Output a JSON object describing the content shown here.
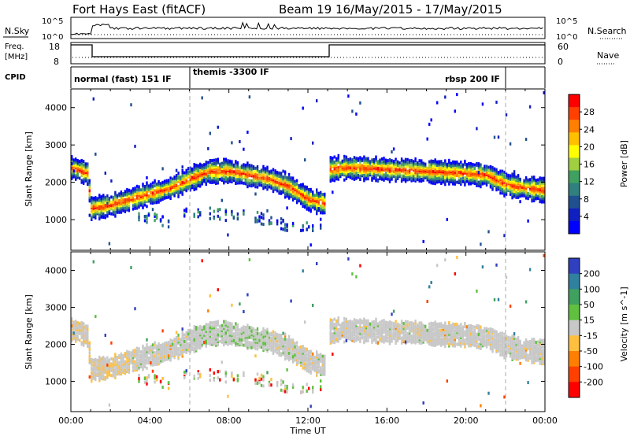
{
  "header": {
    "station": "Fort Hays East (fitACF)",
    "beam_info": "Beam 19  16/May/2015 - 17/May/2015"
  },
  "nsky_panel": {
    "label": "N.Sky",
    "right_label": "N.Search",
    "ticks_left": [
      "10^5",
      "10^0"
    ],
    "ticks_right": [
      "10^5",
      "10^0"
    ]
  },
  "freq_panel": {
    "label_line1": "Freq.",
    "label_line2": "[MHz]",
    "right_label": "Nave",
    "ticks_left": [
      "18",
      "8"
    ],
    "ticks_right": [
      "60",
      "0"
    ]
  },
  "cpid_panel": {
    "label": "CPID",
    "segments": [
      {
        "label": "normal (fast) 151 IF",
        "start_hour": 0,
        "end_hour": 6
      },
      {
        "label": "themis -3300 IF",
        "start_hour": 6,
        "end_hour": 22
      },
      {
        "label": "rbsp 200 IF",
        "start_hour": 22,
        "end_hour": 24
      }
    ]
  },
  "power_panel": {
    "ylabel": "Slant Range [km]",
    "colorbar_label": "Power [dB]",
    "colorbar_ticks": [
      "28",
      "24",
      "20",
      "16",
      "12",
      "8",
      "4"
    ],
    "colorbar_colors": [
      "#ff0000",
      "#ff4000",
      "#ff8000",
      "#ffc000",
      "#ffff00",
      "#a0d040",
      "#40a060",
      "#308080",
      "#205090",
      "#1020c0",
      "#0000ff"
    ]
  },
  "velocity_panel": {
    "ylabel": "Slant Range [km]",
    "colorbar_label": "Velocity [m s^-1]",
    "colorbar_ticks": [
      "200",
      "100",
      "50",
      "15",
      "-15",
      "-50",
      "-100",
      "-200"
    ],
    "colorbar_colors": [
      "#3040c0",
      "#3080a0",
      "#40a060",
      "#60c040",
      "#c8c8c8",
      "#ffc040",
      "#ff8000",
      "#ff4000",
      "#ff0000"
    ]
  },
  "chart_data": [
    {
      "type": "heatmap",
      "title": "Power",
      "xlabel": "Time UT",
      "ylabel": "Slant Range [km]",
      "x_ticks": [
        "00:00",
        "04:00",
        "08:00",
        "12:00",
        "16:00",
        "20:00",
        "00:00"
      ],
      "y_ticks": [
        1000,
        2000,
        3000,
        4000
      ],
      "xlim_hours": [
        0,
        24
      ],
      "ylim": [
        180,
        4500
      ],
      "data_gap_hours": [
        12.8,
        13.0
      ],
      "bands": [
        {
          "name": "main",
          "points": [
            [
              0,
              2400
            ],
            [
              0.8,
              2250
            ],
            [
              1,
              1300
            ],
            [
              2,
              1400
            ],
            [
              3,
              1550
            ],
            [
              4,
              1700
            ],
            [
              5,
              1850
            ],
            [
              6,
              2100
            ],
            [
              7,
              2300
            ],
            [
              8,
              2300
            ],
            [
              9,
              2200
            ],
            [
              10,
              2100
            ],
            [
              11,
              1900
            ],
            [
              12,
              1550
            ],
            [
              12.8,
              1450
            ],
            [
              13,
              2350
            ],
            [
              14,
              2400
            ],
            [
              16,
              2350
            ],
            [
              18,
              2300
            ],
            [
              20,
              2250
            ],
            [
              21,
              2200
            ],
            [
              22,
              1950
            ],
            [
              23,
              1850
            ],
            [
              24,
              1800
            ]
          ]
        },
        {
          "name": "lower",
          "points": [
            [
              3,
              1000
            ],
            [
              4,
              1050
            ],
            [
              5,
              900
            ],
            [
              6,
              1200
            ],
            [
              8,
              1150
            ],
            [
              10,
              1000
            ],
            [
              11.5,
              700
            ],
            [
              12.5,
              900
            ]
          ]
        }
      ],
      "gridlines": "dashed vertical at 06:00 and 22:00"
    },
    {
      "type": "heatmap",
      "title": "Velocity",
      "xlabel": "Time UT",
      "ylabel": "Slant Range [km]",
      "x_ticks": [
        "00:00",
        "04:00",
        "08:00",
        "12:00",
        "16:00",
        "20:00",
        "00:00"
      ],
      "y_ticks": [
        1000,
        2000,
        3000,
        4000
      ],
      "xlim_hours": [
        0,
        24
      ],
      "ylim": [
        180,
        4500
      ],
      "dominant_velocity_range": [
        -15,
        15
      ],
      "gridlines": "dashed vertical at 06:00 and 22:00"
    }
  ],
  "xaxis": {
    "label": "Time UT",
    "ticks": [
      "00:00",
      "04:00",
      "08:00",
      "12:00",
      "16:00",
      "20:00",
      "00:00"
    ]
  }
}
